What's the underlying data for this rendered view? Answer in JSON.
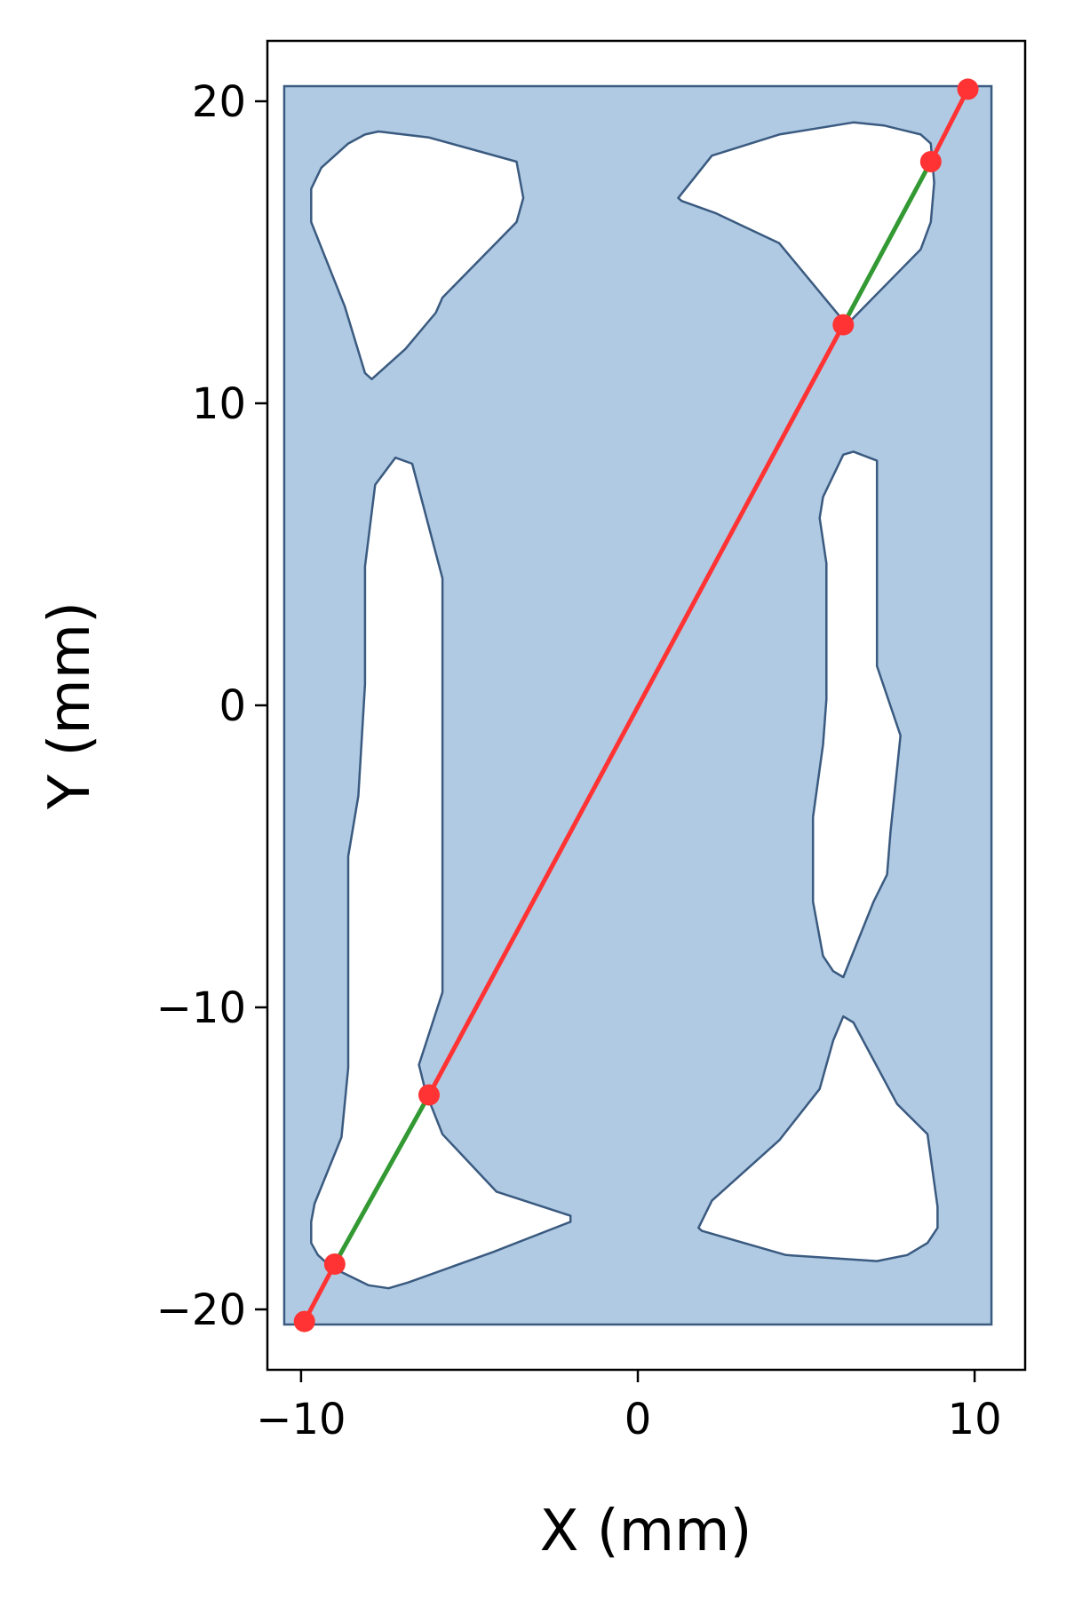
{
  "chart_data": {
    "type": "line",
    "xlabel": "X (mm)",
    "ylabel": "Y (mm)",
    "xlim": [
      -11,
      11.5
    ],
    "ylim": [
      -22,
      22
    ],
    "x_ticks": [
      -10,
      0,
      10
    ],
    "x_tick_labels": [
      "−10",
      "0",
      "10"
    ],
    "y_ticks": [
      -20,
      -10,
      0,
      10,
      20
    ],
    "y_tick_labels": [
      "−20",
      "−10",
      "0",
      "10",
      "20"
    ],
    "grid": false,
    "plate": {
      "x_range": [
        -10.5,
        10.5
      ],
      "y_range": [
        -20.5,
        20.5
      ],
      "fill_color": "#b0cae3",
      "edge_color": "#3a5a80"
    },
    "holes": [
      {
        "name": "top-left",
        "points": [
          [
            -9.7,
            17.1
          ],
          [
            -9.4,
            17.8
          ],
          [
            -8.6,
            18.6
          ],
          [
            -8.1,
            18.9
          ],
          [
            -7.7,
            19.0
          ],
          [
            -6.2,
            18.8
          ],
          [
            -3.6,
            18.0
          ],
          [
            -3.4,
            16.8
          ],
          [
            -3.6,
            16.0
          ],
          [
            -5.8,
            13.5
          ],
          [
            -6.0,
            13.0
          ],
          [
            -6.9,
            11.8
          ],
          [
            -7.9,
            10.8
          ],
          [
            -8.1,
            11.0
          ],
          [
            -8.7,
            13.2
          ],
          [
            -9.7,
            16.0
          ]
        ]
      },
      {
        "name": "top-right",
        "points": [
          [
            1.2,
            16.8
          ],
          [
            2.2,
            18.2
          ],
          [
            4.2,
            18.9
          ],
          [
            6.4,
            19.3
          ],
          [
            7.3,
            19.2
          ],
          [
            8.4,
            18.9
          ],
          [
            8.7,
            18.6
          ],
          [
            8.8,
            17.3
          ],
          [
            8.7,
            16.0
          ],
          [
            8.4,
            15.1
          ],
          [
            6.2,
            12.6
          ],
          [
            4.2,
            15.3
          ],
          [
            2.3,
            16.3
          ],
          [
            1.3,
            16.7
          ]
        ]
      },
      {
        "name": "mid-left",
        "points": [
          [
            -7.2,
            8.2
          ],
          [
            -6.7,
            8.0
          ],
          [
            -5.8,
            4.2
          ],
          [
            -5.8,
            -9.5
          ],
          [
            -6.5,
            -11.9
          ],
          [
            -6.3,
            -12.8
          ],
          [
            -5.8,
            -14.2
          ],
          [
            -4.2,
            -16.1
          ],
          [
            -2.0,
            -16.9
          ],
          [
            -2.0,
            -17.1
          ],
          [
            -4.3,
            -18.1
          ],
          [
            -6.8,
            -19.1
          ],
          [
            -7.4,
            -19.3
          ],
          [
            -8.0,
            -19.2
          ],
          [
            -9.1,
            -18.6
          ],
          [
            -9.5,
            -18.2
          ],
          [
            -9.7,
            -17.8
          ],
          [
            -9.7,
            -17.1
          ],
          [
            -9.6,
            -16.5
          ],
          [
            -8.8,
            -14.3
          ],
          [
            -8.6,
            -12.0
          ],
          [
            -8.6,
            -5.0
          ],
          [
            -8.3,
            -3.0
          ],
          [
            -8.1,
            0.7
          ],
          [
            -8.1,
            4.6
          ],
          [
            -8.0,
            5.5
          ],
          [
            -7.8,
            7.3
          ]
        ]
      },
      {
        "name": "mid-right",
        "points": [
          [
            6.1,
            8.3
          ],
          [
            6.4,
            8.4
          ],
          [
            7.1,
            8.1
          ],
          [
            7.1,
            1.3
          ],
          [
            7.8,
            -1.0
          ],
          [
            7.5,
            -4.2
          ],
          [
            7.4,
            -5.6
          ],
          [
            7.0,
            -6.5
          ],
          [
            6.1,
            -9.0
          ],
          [
            5.8,
            -8.8
          ],
          [
            5.5,
            -8.3
          ],
          [
            5.2,
            -6.5
          ],
          [
            5.2,
            -3.7
          ],
          [
            5.5,
            -1.3
          ],
          [
            5.6,
            0.2
          ],
          [
            5.6,
            1.9
          ],
          [
            5.6,
            4.7
          ],
          [
            5.4,
            6.2
          ],
          [
            5.5,
            6.9
          ]
        ]
      },
      {
        "name": "bottom-right",
        "points": [
          [
            6.1,
            -10.3
          ],
          [
            6.4,
            -10.5
          ],
          [
            7.7,
            -13.2
          ],
          [
            8.6,
            -14.2
          ],
          [
            8.9,
            -16.6
          ],
          [
            8.9,
            -17.3
          ],
          [
            8.6,
            -17.8
          ],
          [
            8.0,
            -18.2
          ],
          [
            7.1,
            -18.4
          ],
          [
            4.4,
            -18.2
          ],
          [
            1.9,
            -17.4
          ],
          [
            1.8,
            -17.3
          ],
          [
            2.2,
            -16.4
          ],
          [
            4.2,
            -14.4
          ],
          [
            5.4,
            -12.7
          ],
          [
            5.8,
            -11.1
          ]
        ]
      }
    ],
    "series": [
      {
        "color": "#ff3333",
        "segments": [
          [
            [
              -9.9,
              -20.4
            ],
            [
              -9.0,
              -18.5
            ]
          ],
          [
            [
              -6.2,
              -12.9
            ],
            [
              6.1,
              12.6
            ]
          ],
          [
            [
              8.7,
              18.0
            ],
            [
              9.8,
              20.4
            ]
          ]
        ],
        "points": [
          [
            -9.9,
            -20.4
          ],
          [
            -9.0,
            -18.5
          ],
          [
            -6.2,
            -12.9
          ],
          [
            6.1,
            12.6
          ],
          [
            8.7,
            18.0
          ],
          [
            9.8,
            20.4
          ]
        ]
      },
      {
        "color": "#339933",
        "segments": [
          [
            [
              -9.0,
              -18.5
            ],
            [
              -6.2,
              -12.9
            ]
          ],
          [
            [
              6.1,
              12.6
            ],
            [
              8.7,
              18.0
            ]
          ]
        ]
      }
    ]
  }
}
